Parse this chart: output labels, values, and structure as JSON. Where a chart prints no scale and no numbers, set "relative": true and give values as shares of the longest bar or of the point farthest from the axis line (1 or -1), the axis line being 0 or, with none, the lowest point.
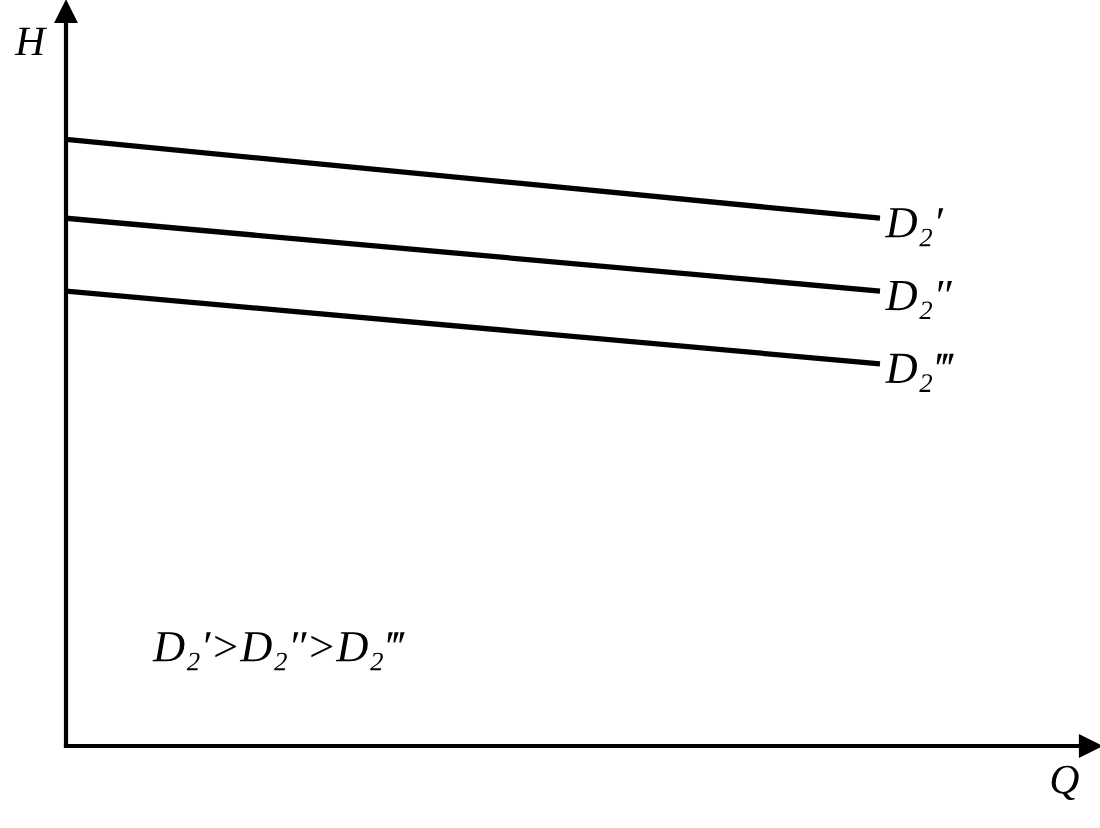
{
  "chart_data": {
    "type": "line",
    "xlabel": "Q",
    "ylabel": "H",
    "categories": [
      null,
      null
    ],
    "relative": true,
    "series": [
      {
        "name": "D₂′",
        "color": "#000000",
        "values": [
          1,
          0.87
        ]
      },
      {
        "name": "D₂″",
        "color": "#000000",
        "values": [
          0.87,
          0.75
        ]
      },
      {
        "name": "D₂‴",
        "color": "#000000",
        "values": [
          0.75,
          0.63
        ]
      }
    ],
    "annotations": [
      "D₂′>D₂″>D₂‴"
    ],
    "legend": false,
    "grid": false
  }
}
